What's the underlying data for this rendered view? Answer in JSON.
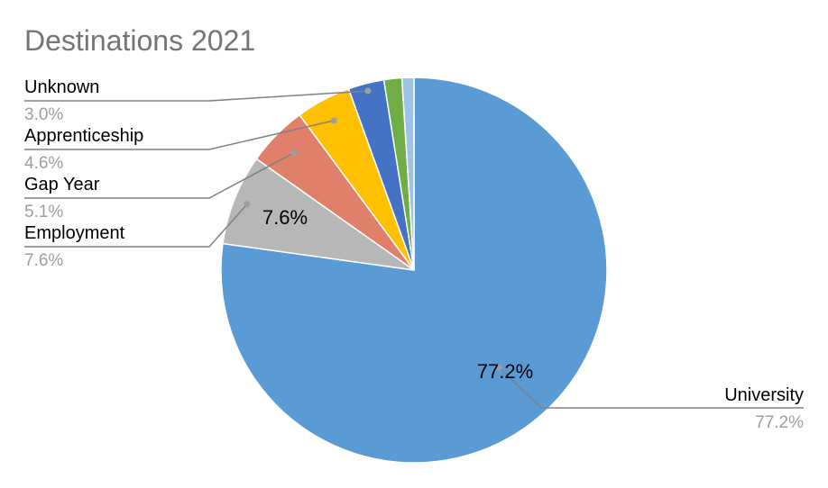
{
  "chart_data": {
    "type": "pie",
    "title": "Destinations 2021",
    "slices": [
      {
        "label": "University",
        "value": 77.2,
        "percent_label": "77.2%",
        "color": "#5b9bd5"
      },
      {
        "label": "Employment",
        "value": 7.6,
        "percent_label": "7.6%",
        "color": "#b7b7b7"
      },
      {
        "label": "Gap Year",
        "value": 5.1,
        "percent_label": "5.1%",
        "color": "#e07f6a"
      },
      {
        "label": "Apprenticeship",
        "value": 4.6,
        "percent_label": "4.6%",
        "color": "#ffc000"
      },
      {
        "label": "Unknown",
        "value": 3.0,
        "percent_label": "3.0%",
        "color": "#4472c4"
      },
      {
        "label": "",
        "value": 1.5,
        "percent_label": "",
        "color": "#70ad47"
      },
      {
        "label": "",
        "value": 1.0,
        "percent_label": "",
        "color": "#9dc3e6"
      }
    ],
    "inside_labels": [
      "77.2%",
      "7.6%"
    ],
    "legend": "none"
  }
}
